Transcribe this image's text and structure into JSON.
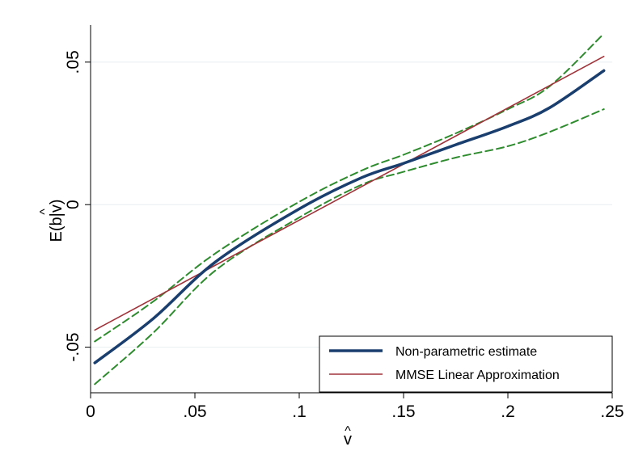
{
  "chart_data": {
    "type": "line",
    "title": "",
    "xlabel": "v",
    "ylabel": "E(b|v)",
    "label_hat": "^",
    "xlim": [
      0,
      0.25
    ],
    "ylim": [
      -0.066,
      0.063
    ],
    "x_ticks": [
      0,
      0.05,
      0.1,
      0.15,
      0.2,
      0.25
    ],
    "x_tick_labels": [
      "0",
      ".05",
      ".1",
      ".15",
      ".2",
      ".25"
    ],
    "y_ticks": [
      -0.05,
      0,
      0.05
    ],
    "y_tick_labels": [
      "-.05",
      "0",
      ".05"
    ],
    "grid": true,
    "legend_position": "bottom-right",
    "series": [
      {
        "name": "Non-parametric estimate",
        "color": "#1a3f6f",
        "style": "solid-thick",
        "x": [
          0.002,
          0.03,
          0.06,
          0.1,
          0.13,
          0.15,
          0.175,
          0.2,
          0.22,
          0.246
        ],
        "y": [
          -0.0555,
          -0.04,
          -0.02,
          -0.0015,
          0.0095,
          0.0145,
          0.021,
          0.0275,
          0.034,
          0.047
        ]
      },
      {
        "name": "MMSE Linear Approximation",
        "color": "#a0333a",
        "style": "solid-thin",
        "x": [
          0.002,
          0.246
        ],
        "y": [
          -0.044,
          0.052
        ]
      },
      {
        "name": "",
        "color": "#2e8b2e",
        "style": "dashed",
        "x": [
          0.002,
          0.03,
          0.06,
          0.1,
          0.13,
          0.15,
          0.175,
          0.2,
          0.22,
          0.246
        ],
        "y": [
          -0.048,
          -0.034,
          -0.017,
          0.001,
          0.012,
          0.0175,
          0.025,
          0.0335,
          0.0415,
          0.06
        ]
      },
      {
        "name": "",
        "color": "#2e8b2e",
        "style": "dashed",
        "x": [
          0.002,
          0.03,
          0.06,
          0.1,
          0.13,
          0.15,
          0.175,
          0.2,
          0.22,
          0.246
        ],
        "y": [
          -0.063,
          -0.045,
          -0.023,
          -0.0045,
          0.007,
          0.0115,
          0.0165,
          0.0205,
          0.0255,
          0.0335
        ]
      }
    ]
  }
}
